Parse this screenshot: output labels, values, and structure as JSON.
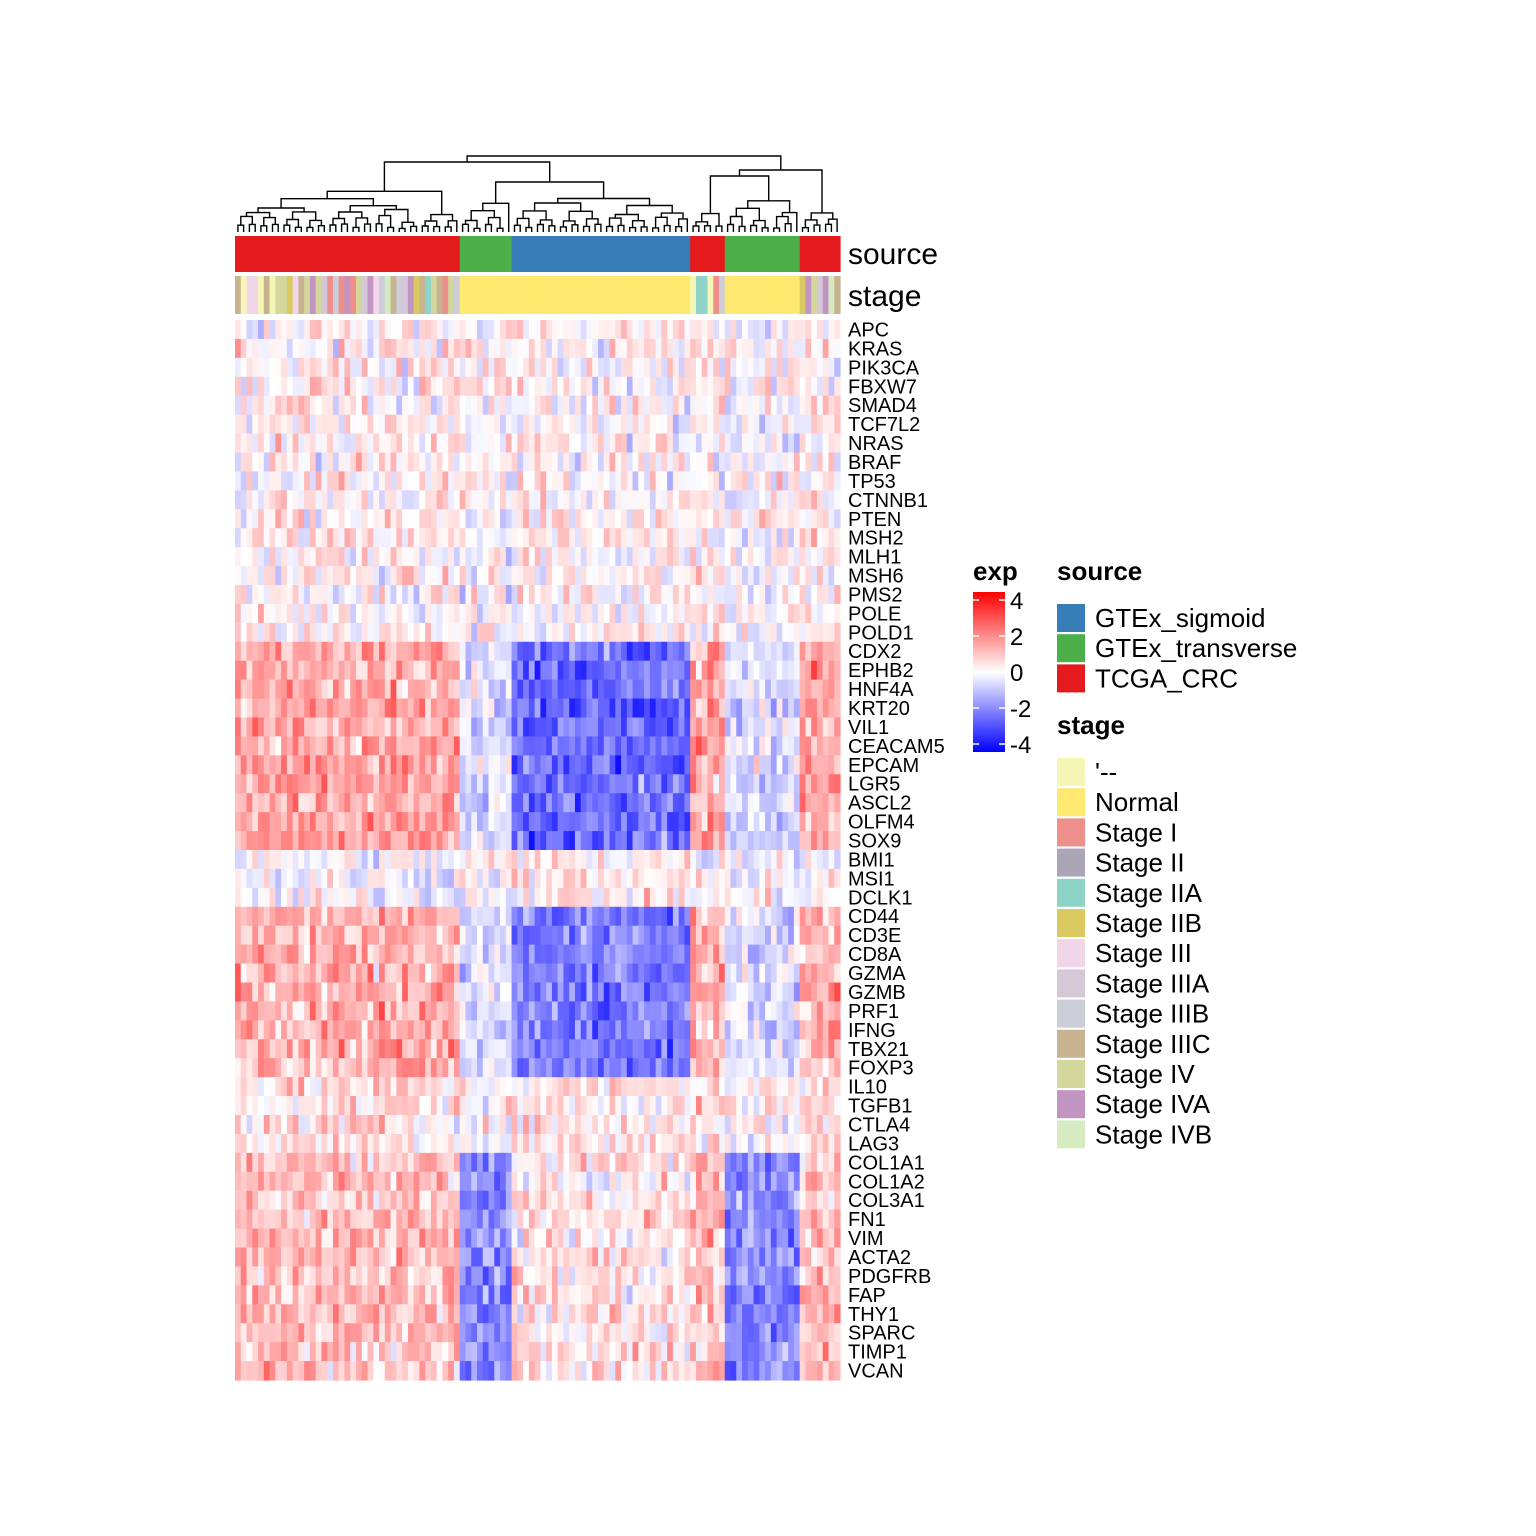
{
  "chart_data": {
    "type": "heatmap",
    "title": "",
    "xlabel": "",
    "ylabel": "",
    "genes": [
      "APC",
      "KRAS",
      "PIK3CA",
      "FBXW7",
      "SMAD4",
      "TCF7L2",
      "NRAS",
      "BRAF",
      "TP53",
      "CTNNB1",
      "PTEN",
      "MSH2",
      "MLH1",
      "MSH6",
      "PMS2",
      "POLE",
      "POLD1",
      "CDX2",
      "EPHB2",
      "HNF4A",
      "KRT20",
      "VIL1",
      "CEACAM5",
      "EPCAM",
      "LGR5",
      "ASCL2",
      "OLFM4",
      "SOX9",
      "BMI1",
      "MSI1",
      "DCLK1",
      "CD44",
      "CD3E",
      "CD8A",
      "GZMA",
      "GZMB",
      "PRF1",
      "IFNG",
      "TBX21",
      "FOXP3",
      "IL10",
      "TGFB1",
      "CTLA4",
      "LAG3",
      "COL1A1",
      "COL1A2",
      "COL3A1",
      "FN1",
      "VIM",
      "ACTA2",
      "PDGFRB",
      "FAP",
      "THY1",
      "SPARC",
      "TIMP1",
      "VCAN"
    ],
    "sample_count": 105,
    "sample_groups": [
      {
        "source": "TCGA_CRC",
        "stage": "mixed",
        "count": 39
      },
      {
        "source": "GTEx_transverse",
        "stage": "Normal",
        "count": 9
      },
      {
        "source": "GTEx_sigmoid",
        "stage": "Normal",
        "count": 31
      },
      {
        "source": "TCGA_CRC",
        "stage": "mixed",
        "count": 6
      },
      {
        "source": "GTEx_transverse",
        "stage": "Normal",
        "count": 13
      },
      {
        "source": "TCGA_CRC",
        "stage": "mixed",
        "count": 7
      }
    ],
    "row_blocks": [
      {
        "genes": "APC-POLD1",
        "TCGA_CRC": 0.2,
        "GTEx": 0.1
      },
      {
        "genes": "CDX2-SOX9",
        "TCGA_CRC": 1.4,
        "GTEx": -2.3
      },
      {
        "genes": "BMI1-DCLK1",
        "TCGA_CRC": -0.1,
        "GTEx": 0.3
      },
      {
        "genes": "CD44-FOXP3",
        "TCGA_CRC": 1.2,
        "GTEx": -2.0
      },
      {
        "genes": "IL10-LAG3",
        "TCGA_CRC": 0.5,
        "GTEx": 0.4
      },
      {
        "genes": "COL1A1-VCAN",
        "TCGA_CRC": 1.0,
        "GTEx_sigmoid": 0.4,
        "GTEx_transverse": -1.8
      }
    ],
    "color_scale": {
      "name": "exp",
      "breaks": [
        4,
        2,
        0,
        -2,
        -4
      ],
      "colors": {
        "high": "#ff0000",
        "mid": "#ffffff",
        "low": "#0000ff"
      }
    },
    "annotations": [
      {
        "name": "source",
        "legend_title": "source",
        "levels": [
          {
            "label": "GTEx_sigmoid",
            "color": "#377eb8"
          },
          {
            "label": "GTEx_transverse",
            "color": "#4daf4a"
          },
          {
            "label": "TCGA_CRC",
            "color": "#e41a1c"
          }
        ]
      },
      {
        "name": "stage",
        "legend_title": "stage",
        "levels": [
          {
            "label": "'--",
            "color": "#f5f5b5"
          },
          {
            "label": "Normal",
            "color": "#fde96f"
          },
          {
            "label": "Stage I",
            "color": "#ef8f8c"
          },
          {
            "label": "Stage II",
            "color": "#aaa6b5"
          },
          {
            "label": "Stage IIA",
            "color": "#8dd3c7"
          },
          {
            "label": "Stage IIB",
            "color": "#d9c960"
          },
          {
            "label": "Stage III",
            "color": "#f0d6e6"
          },
          {
            "label": "Stage IIIA",
            "color": "#d4c8d8"
          },
          {
            "label": "Stage IIIB",
            "color": "#cdcdd8"
          },
          {
            "label": "Stage IIIC",
            "color": "#c8b391"
          },
          {
            "label": "Stage IV",
            "color": "#d3d79c"
          },
          {
            "label": "Stage IVA",
            "color": "#c194c1"
          },
          {
            "label": "Stage IVB",
            "color": "#d5ecc2"
          }
        ]
      }
    ],
    "legend_placement": "right",
    "dendrogram": "columns"
  }
}
